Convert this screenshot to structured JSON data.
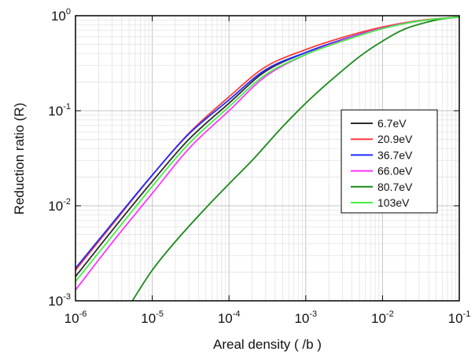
{
  "chart_data": {
    "type": "line",
    "xlabel": "Areal density ( /b )",
    "ylabel": "Reduction ratio (R)",
    "x_scale": "log",
    "y_scale": "log",
    "xlim": [
      1e-06,
      0.1
    ],
    "ylim": [
      0.001,
      1
    ],
    "x_ticks": [
      {
        "base": "10",
        "exp": "-6"
      },
      {
        "base": "10",
        "exp": "-5"
      },
      {
        "base": "10",
        "exp": "-4"
      },
      {
        "base": "10",
        "exp": "-3"
      },
      {
        "base": "10",
        "exp": "-2"
      },
      {
        "base": "10",
        "exp": "-1"
      }
    ],
    "y_ticks": [
      {
        "base": "10",
        "exp": "-3"
      },
      {
        "base": "10",
        "exp": "-2"
      },
      {
        "base": "10",
        "exp": "-1"
      },
      {
        "base": "10",
        "exp": "0"
      }
    ],
    "grid": true,
    "legend_position": "right",
    "series": [
      {
        "name": "6.7eV",
        "color": "#2b2b2b",
        "x": [
          1e-06,
          3e-06,
          1e-05,
          3e-05,
          0.0001,
          0.0003,
          0.001,
          0.003,
          0.01,
          0.03,
          0.1
        ],
        "y": [
          0.0018,
          0.0055,
          0.018,
          0.05,
          0.12,
          0.26,
          0.41,
          0.56,
          0.74,
          0.88,
          0.97
        ]
      },
      {
        "name": "20.9eV",
        "color": "#ff3b3b",
        "x": [
          1e-06,
          3e-06,
          1e-05,
          3e-05,
          0.0001,
          0.0003,
          0.001,
          0.003,
          0.01,
          0.03,
          0.1
        ],
        "y": [
          0.0021,
          0.0063,
          0.021,
          0.058,
          0.14,
          0.29,
          0.44,
          0.59,
          0.76,
          0.89,
          0.97
        ]
      },
      {
        "name": "36.7eV",
        "color": "#1f2bff",
        "x": [
          1e-06,
          3e-06,
          1e-05,
          3e-05,
          0.0001,
          0.0003,
          0.001,
          0.003,
          0.01,
          0.03,
          0.1
        ],
        "y": [
          0.0022,
          0.0065,
          0.021,
          0.057,
          0.13,
          0.27,
          0.41,
          0.56,
          0.74,
          0.88,
          0.97
        ]
      },
      {
        "name": "66.0eV",
        "color": "#ff33ff",
        "x": [
          1e-06,
          3e-06,
          1e-05,
          3e-05,
          0.0001,
          0.0003,
          0.001,
          0.003,
          0.01,
          0.03,
          0.1
        ],
        "y": [
          0.0013,
          0.0041,
          0.0135,
          0.04,
          0.1,
          0.23,
          0.39,
          0.55,
          0.74,
          0.88,
          0.97
        ]
      },
      {
        "name": "80.7eV",
        "color": "#1a8a1a",
        "x": [
          5.5e-06,
          1e-05,
          2e-05,
          5e-05,
          0.0001,
          0.0002,
          0.0005,
          0.001,
          0.002,
          0.005,
          0.01,
          0.02,
          0.05,
          0.1
        ],
        "y": [
          0.001,
          0.0021,
          0.0042,
          0.0095,
          0.017,
          0.03,
          0.068,
          0.12,
          0.2,
          0.37,
          0.54,
          0.73,
          0.9,
          0.97
        ]
      },
      {
        "name": "103eV",
        "color": "#44ee44",
        "x": [
          1e-06,
          3e-06,
          1e-05,
          3e-05,
          0.0001,
          0.0003,
          0.001,
          0.003,
          0.01,
          0.03,
          0.1
        ],
        "y": [
          0.0016,
          0.0048,
          0.016,
          0.045,
          0.11,
          0.24,
          0.39,
          0.54,
          0.73,
          0.88,
          0.97
        ]
      }
    ]
  }
}
